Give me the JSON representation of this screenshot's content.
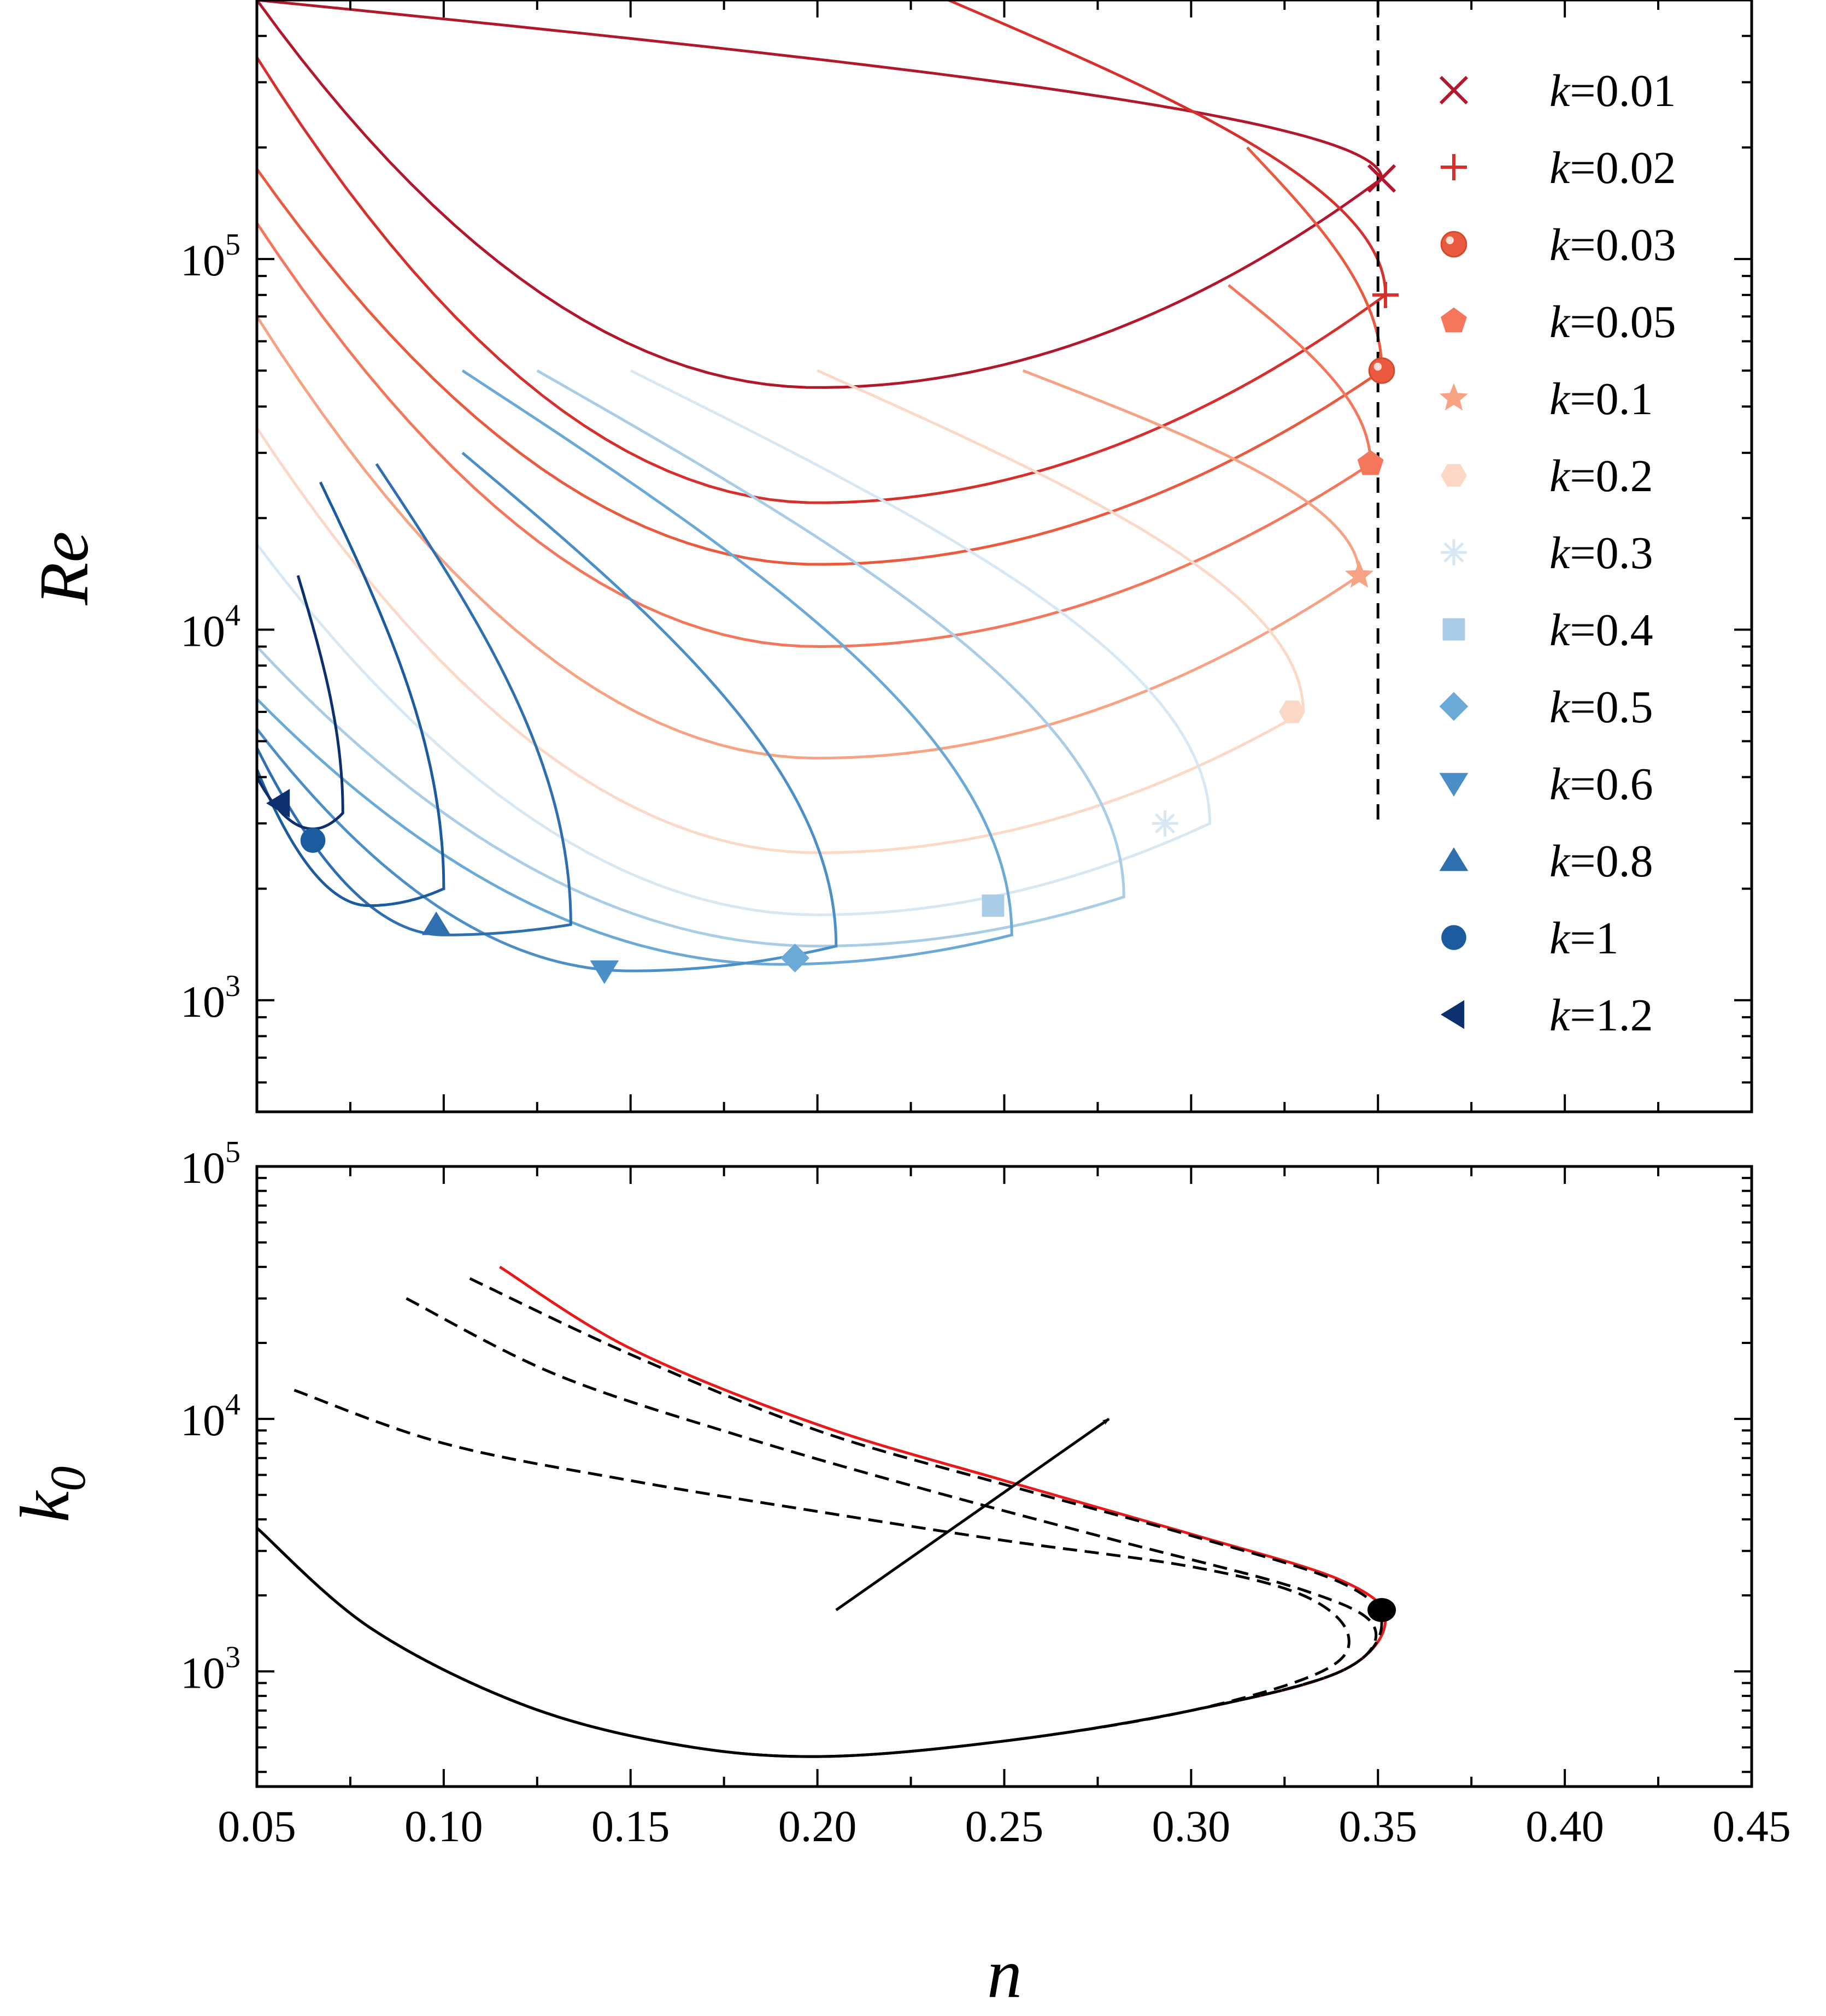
{
  "chart_data": [
    {
      "type": "line",
      "ylabel": "Re",
      "xlabel": "",
      "x_scale": "linear",
      "y_scale": "log",
      "xlim": [
        0.05,
        0.45
      ],
      "ylim": [
        500,
        500000
      ],
      "x_ticks": [
        0.05,
        0.1,
        0.15,
        0.2,
        0.25,
        0.3,
        0.35,
        0.4,
        0.45
      ],
      "y_ticks": [
        {
          "value": 1000,
          "base": "10",
          "exp": "3"
        },
        {
          "value": 10000,
          "base": "10",
          "exp": "4"
        },
        {
          "value": 100000,
          "base": "10",
          "exp": "5"
        }
      ],
      "legend_position": "right",
      "reference_line": {
        "x": 0.35,
        "y_range": [
          3000,
          500000
        ],
        "style": "dashed"
      },
      "series": [
        {
          "name": "0.01",
          "color": "#b2182b",
          "marker": "x",
          "n_max": 0.351,
          "k0_max": 165000,
          "n_min": 0.2,
          "Re_min": 45000,
          "upper_start": [
            0.05,
            500000
          ],
          "lower_start": [
            0.05,
            500000
          ],
          "branch_start": null,
          "marker_point": [
            0.351,
            165000
          ]
        },
        {
          "name": "0.02",
          "color": "#d6302d",
          "marker": "+",
          "n_max": 0.352,
          "k0_max": 80000,
          "n_min": 0.2,
          "Re_min": 22000,
          "upper_start": [
            0.235,
            500000
          ],
          "lower_start": [
            0.05,
            350000
          ],
          "branch_start": [
            0.235,
            500000
          ],
          "marker_point": [
            0.352,
            80000
          ]
        },
        {
          "name": "0.03",
          "color": "#ea5a3f",
          "marker": "sphere",
          "n_max": 0.351,
          "k0_max": 50000,
          "n_min": 0.2,
          "Re_min": 15000,
          "upper_start": [
            0.315,
            200000
          ],
          "lower_start": [
            0.05,
            175000
          ],
          "branch_start": [
            0.315,
            200000
          ],
          "marker_point": [
            0.351,
            50000
          ]
        },
        {
          "name": "0.05",
          "color": "#f4775c",
          "marker": "pentagon",
          "n_max": 0.348,
          "k0_max": 28000,
          "n_min": 0.2,
          "Re_min": 9000,
          "upper_start": [
            0.31,
            85000
          ],
          "lower_start": [
            0.05,
            125000
          ],
          "branch_start": [
            0.31,
            85000
          ],
          "marker_point": [
            0.348,
            28000
          ]
        },
        {
          "name": "0.1",
          "color": "#f7a283",
          "marker": "star",
          "n_max": 0.345,
          "k0_max": 14000,
          "n_min": 0.2,
          "Re_min": 4500,
          "upper_start": [
            0.255,
            50000
          ],
          "lower_start": [
            0.05,
            70000
          ],
          "branch_start": [
            0.255,
            50000
          ],
          "marker_point": [
            0.345,
            14000
          ]
        },
        {
          "name": "0.2",
          "color": "#fbd9c6",
          "marker": "hexagon",
          "n_max": 0.33,
          "k0_max": 6000,
          "n_min": 0.2,
          "Re_min": 2500,
          "upper_start": [
            0.2,
            50000
          ],
          "lower_start": [
            0.05,
            35000
          ],
          "branch_start": [
            0.2,
            50000
          ],
          "marker_point": [
            0.327,
            6000
          ]
        },
        {
          "name": "0.3",
          "color": "#d7e7f4",
          "marker": "asterisk",
          "n_max": 0.305,
          "k0_max": 3000,
          "n_min": 0.2,
          "Re_min": 1700,
          "upper_start": [
            0.15,
            50000
          ],
          "lower_start": [
            0.05,
            17000
          ],
          "branch_start": [
            0.15,
            50000
          ],
          "marker_point": [
            0.293,
            3000
          ]
        },
        {
          "name": "0.4",
          "color": "#a9cde6",
          "marker": "square",
          "n_max": 0.282,
          "k0_max": 1900,
          "n_min": 0.2,
          "Re_min": 1400,
          "upper_start": [
            0.125,
            50000
          ],
          "lower_start": [
            0.05,
            9000
          ],
          "branch_start": [
            0.125,
            50000
          ],
          "marker_point": [
            0.247,
            1800
          ]
        },
        {
          "name": "0.5",
          "color": "#6baad6",
          "marker": "diamond",
          "n_max": 0.252,
          "k0_max": 1500,
          "n_min": 0.19,
          "Re_min": 1250,
          "upper_start": [
            0.105,
            50000
          ],
          "lower_start": [
            0.05,
            6500
          ],
          "branch_start": [
            0.105,
            50000
          ],
          "marker_point": [
            0.194,
            1300
          ]
        },
        {
          "name": "0.6",
          "color": "#4b8fc8",
          "marker": "triangle-down",
          "n_max": 0.205,
          "k0_max": 1400,
          "n_min": 0.15,
          "Re_min": 1200,
          "upper_start": [
            0.105,
            30000
          ],
          "lower_start": [
            0.05,
            5400
          ],
          "branch_start": [
            0.105,
            30000
          ],
          "marker_point": [
            0.143,
            1200
          ]
        },
        {
          "name": "0.8",
          "color": "#2f6fb0",
          "marker": "triangle-up",
          "n_max": 0.134,
          "k0_max": 1600,
          "n_min": 0.1,
          "Re_min": 1500,
          "upper_start": [
            0.082,
            28000
          ],
          "lower_start": [
            0.05,
            4800
          ],
          "branch_start": [
            0.082,
            28000
          ],
          "marker_point": [
            0.098,
            1600
          ]
        },
        {
          "name": "1",
          "color": "#1b5b9e",
          "marker": "circle",
          "n_max": 0.1,
          "k0_max": 2000,
          "n_min": 0.08,
          "Re_min": 1800,
          "upper_start": [
            0.067,
            25000
          ],
          "lower_start": [
            0.05,
            4200
          ],
          "branch_start": [
            0.067,
            25000
          ],
          "marker_point": [
            0.065,
            2700
          ]
        },
        {
          "name": "1.2",
          "color": "#0d2f6e",
          "marker": "triangle-left",
          "n_max": 0.073,
          "k0_max": 3200,
          "n_min": 0.065,
          "Re_min": 2900,
          "upper_start": [
            0.061,
            14000
          ],
          "lower_start": [
            0.05,
            4000
          ],
          "branch_start": [
            0.061,
            14000
          ],
          "marker_point": [
            0.056,
            3400
          ]
        }
      ]
    },
    {
      "type": "line",
      "ylabel": "k0",
      "xlabel": "n",
      "x_scale": "linear",
      "y_scale": "log",
      "xlim": [
        0.05,
        0.45
      ],
      "ylim": [
        350,
        100000
      ],
      "x_ticks": [
        0.05,
        0.1,
        0.15,
        0.2,
        0.25,
        0.3,
        0.35,
        0.4,
        0.45
      ],
      "x_tick_labels": [
        "0.05",
        "0.10",
        "0.15",
        "0.20",
        "0.25",
        "0.30",
        "0.35",
        "0.40",
        "0.45"
      ],
      "y_ticks": [
        {
          "value": 1000,
          "base": "10",
          "exp": "3"
        },
        {
          "value": 10000,
          "base": "10",
          "exp": "4"
        },
        {
          "value": 100000,
          "base": "10",
          "exp": "5"
        }
      ],
      "series": [
        {
          "color": "#e8191a",
          "style": "solid",
          "upper_branch": {
            "x": [
              0.115,
              0.15,
              0.2,
              0.25,
              0.3,
              0.34,
              0.352
            ],
            "y": [
              40000,
              19000,
              9500,
              5700,
              3500,
              2300,
              1600
            ]
          },
          "lower_branch": {
            "x": [
              0.05,
              0.08,
              0.12,
              0.16,
              0.2,
              0.25,
              0.3,
              0.34,
              0.352
            ],
            "y": [
              3700,
              1500,
              750,
              520,
              460,
              530,
              700,
              1000,
              1400
            ]
          }
        },
        {
          "color": "#000000",
          "style": "dashed",
          "upper_branch": {
            "x": [
              0.107,
              0.15,
              0.2,
              0.25,
              0.3,
              0.34,
              0.351
            ],
            "y": [
              36000,
              18000,
              9000,
              5500,
              3450,
              2250,
              1550
            ]
          },
          "lower_branch": {
            "x": [
              0.05,
              0.08,
              0.12,
              0.16,
              0.2,
              0.25,
              0.3,
              0.34,
              0.351
            ],
            "y": [
              3700,
              1500,
              750,
              520,
              460,
              530,
              700,
              1000,
              1400
            ]
          }
        },
        {
          "color": "#000000",
          "style": "dashed",
          "upper_branch": {
            "x": [
              0.09,
              0.13,
              0.18,
              0.23,
              0.28,
              0.33,
              0.349
            ],
            "y": [
              30000,
              15000,
              8500,
              5200,
              3300,
              2100,
              1500
            ]
          },
          "lower_branch": {
            "x": [
              0.05,
              0.08,
              0.12,
              0.16,
              0.2,
              0.25,
              0.3,
              0.34,
              0.349
            ],
            "y": [
              3700,
              1500,
              750,
              520,
              460,
              530,
              700,
              1000,
              1350
            ]
          }
        },
        {
          "color": "#000000",
          "style": "dashed",
          "upper_branch": {
            "x": [
              0.06,
              0.1,
              0.15,
              0.2,
              0.25,
              0.3,
              0.33,
              0.342
            ],
            "y": [
              13000,
              8000,
              5700,
              4300,
              3300,
              2600,
              2000,
              1400
            ]
          },
          "lower_branch": {
            "x": [
              0.05,
              0.08,
              0.12,
              0.16,
              0.2,
              0.25,
              0.3,
              0.335,
              0.342
            ],
            "y": [
              3700,
              1500,
              750,
              520,
              460,
              530,
              700,
              1000,
              1300
            ]
          }
        }
      ],
      "point": {
        "x": 0.351,
        "y": 1750
      },
      "arrow": {
        "from": [
          0.205,
          1750
        ],
        "to": [
          0.278,
          10000
        ]
      }
    }
  ],
  "legend": [
    {
      "prefix": "k",
      "value": "=0.01"
    },
    {
      "prefix": "k",
      "value": "=0.02"
    },
    {
      "prefix": "k",
      "value": "=0.03"
    },
    {
      "prefix": "k",
      "value": "=0.05"
    },
    {
      "prefix": "k",
      "value": "=0.1"
    },
    {
      "prefix": "k",
      "value": "=0.2"
    },
    {
      "prefix": "k",
      "value": "=0.3"
    },
    {
      "prefix": "k",
      "value": "=0.4"
    },
    {
      "prefix": "k",
      "value": "=0.5"
    },
    {
      "prefix": "k",
      "value": "=0.6"
    },
    {
      "prefix": "k",
      "value": "=0.8"
    },
    {
      "prefix": "k",
      "value": "=1"
    },
    {
      "prefix": "k",
      "value": "=1.2"
    }
  ],
  "labels": {
    "top_ylabel": "Re",
    "bottom_ylabel_main": "k",
    "bottom_ylabel_sub": "0",
    "xlabel": "n"
  }
}
